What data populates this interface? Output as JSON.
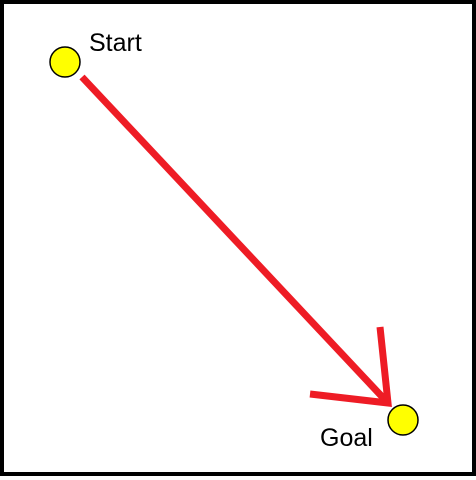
{
  "start": {
    "label": "Start"
  },
  "goal": {
    "label": "Goal"
  },
  "colors": {
    "marker_fill": "#ffff00",
    "marker_stroke": "#000000",
    "arrow": "#ee1c25",
    "border": "#000000",
    "background": "#ffffff"
  }
}
